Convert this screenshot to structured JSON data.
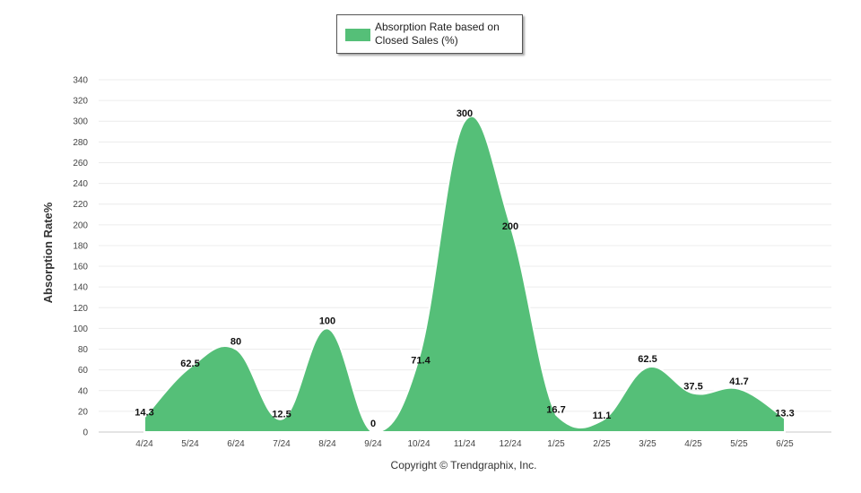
{
  "chart_data": {
    "type": "area",
    "categories": [
      "4/24",
      "5/24",
      "6/24",
      "7/24",
      "8/24",
      "9/24",
      "10/24",
      "11/24",
      "12/24",
      "1/25",
      "2/25",
      "3/25",
      "4/25",
      "5/25",
      "6/25"
    ],
    "series": [
      {
        "name": "Absorption Rate based on Closed Sales (%)",
        "values": [
          14.3,
          62.5,
          80,
          12.5,
          100,
          0,
          71.4,
          300,
          200,
          16.7,
          11.1,
          62.5,
          37.5,
          41.7,
          13.3
        ],
        "color": "#55bf78"
      }
    ],
    "data_labels": [
      "14.3",
      "62.5",
      "80",
      "12.5",
      "100",
      "0",
      "71.4",
      "300",
      "200",
      "16.7",
      "11.1",
      "62.5",
      "37.5",
      "41.7",
      "13.3"
    ],
    "ylabel": "Absorption Rate%",
    "ylim": [
      0,
      340
    ],
    "yticks": [
      0,
      20,
      40,
      60,
      80,
      100,
      120,
      140,
      160,
      180,
      200,
      220,
      240,
      260,
      280,
      300,
      320,
      340
    ],
    "grid": true,
    "legend": "top-center",
    "footer": "Copyright © Trendgraphix, Inc."
  }
}
